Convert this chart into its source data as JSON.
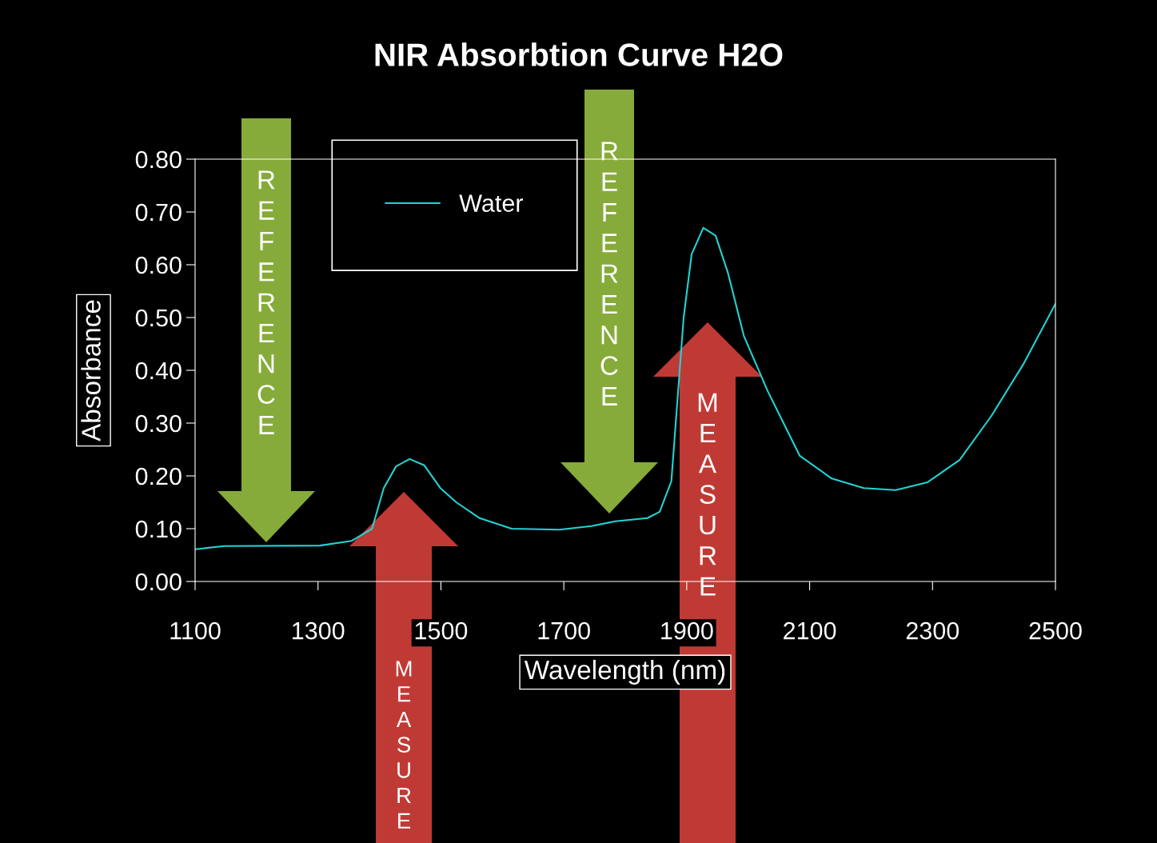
{
  "chart_data": {
    "type": "line",
    "title": "NIR Absorbtion Curve H2O",
    "xlabel": "Wavelength (nm)",
    "ylabel": "Absorbance",
    "x": [
      1100,
      1147,
      1303,
      1355,
      1388,
      1407,
      1427,
      1449,
      1473,
      1499,
      1525,
      1563,
      1615,
      1693,
      1745,
      1784,
      1836,
      1856,
      1875,
      1895,
      1908,
      1927,
      1947,
      1967,
      1993,
      2032,
      2084,
      2136,
      2188,
      2240,
      2292,
      2344,
      2396,
      2448,
      2500
    ],
    "series": [
      {
        "name": "Water",
        "color": "#22d3d3",
        "values": [
          0.061,
          0.067,
          0.068,
          0.077,
          0.1,
          0.177,
          0.218,
          0.232,
          0.22,
          0.177,
          0.15,
          0.12,
          0.1,
          0.098,
          0.105,
          0.114,
          0.12,
          0.132,
          0.19,
          0.5,
          0.62,
          0.67,
          0.655,
          0.585,
          0.465,
          0.36,
          0.238,
          0.195,
          0.177,
          0.173,
          0.188,
          0.23,
          0.314,
          0.412,
          0.526
        ]
      }
    ],
    "xlim": [
      1100,
      2500
    ],
    "xticks": [
      1100,
      1300,
      1500,
      1700,
      1900,
      2100,
      2300,
      2500
    ],
    "ylim": [
      0,
      0.8
    ],
    "yticks": [
      {
        "value": 0,
        "label": "0.00"
      },
      {
        "value": 0.1,
        "label": "0.10"
      },
      {
        "value": 0.2,
        "label": "0.20"
      },
      {
        "value": 0.3,
        "label": "0.30"
      },
      {
        "value": 0.4,
        "label": "0.40"
      },
      {
        "value": 0.5,
        "label": "0.50"
      },
      {
        "value": 0.6,
        "label": "0.60"
      },
      {
        "value": 0.7,
        "label": "0.70"
      },
      {
        "value": 0.8,
        "label": "0.80"
      }
    ],
    "grid": false,
    "legend": "top left",
    "marker": "none",
    "line_style": "solid",
    "annotations": [
      "REFERENCE",
      "REFERENCE",
      "MEASURE",
      "MEASURE"
    ]
  }
}
